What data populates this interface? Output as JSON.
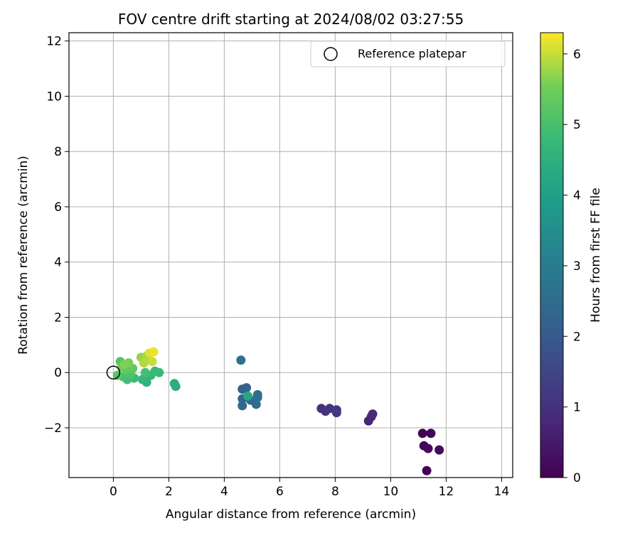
{
  "chart_data": {
    "type": "scatter",
    "title": "FOV centre drift starting at 2024/08/02 03:27:55",
    "xlabel": "Angular distance from reference (arcmin)",
    "ylabel": "Rotation from reference (arcmin)",
    "colorbar_label": "Hours from first FF file",
    "xlim": [
      -1.6,
      14.4
    ],
    "ylim": [
      -3.8,
      12.3
    ],
    "clim": [
      0,
      6.3
    ],
    "x_ticks": [
      0,
      2,
      4,
      6,
      8,
      10,
      12,
      14
    ],
    "y_ticks": [
      -2,
      0,
      2,
      4,
      6,
      8,
      10,
      12
    ],
    "colorbar_ticks": [
      0,
      1,
      2,
      3,
      4,
      5,
      6
    ],
    "grid": true,
    "colormap": "viridis",
    "legend": {
      "placement": "top-right",
      "entries": [
        "Reference platepar"
      ]
    },
    "reference_point": {
      "x": 0,
      "y": 0
    },
    "points": [
      {
        "x": 11.3,
        "y": -3.55,
        "t": 0.0
      },
      {
        "x": 11.15,
        "y": -2.2,
        "t": 0.05
      },
      {
        "x": 11.45,
        "y": -2.2,
        "t": 0.08
      },
      {
        "x": 11.2,
        "y": -2.65,
        "t": 0.12
      },
      {
        "x": 11.35,
        "y": -2.75,
        "t": 0.15
      },
      {
        "x": 11.75,
        "y": -2.8,
        "t": 0.2
      },
      {
        "x": 9.2,
        "y": -1.75,
        "t": 0.7
      },
      {
        "x": 9.3,
        "y": -1.6,
        "t": 0.75
      },
      {
        "x": 9.35,
        "y": -1.5,
        "t": 0.8
      },
      {
        "x": 7.5,
        "y": -1.3,
        "t": 1.0
      },
      {
        "x": 7.65,
        "y": -1.4,
        "t": 1.05
      },
      {
        "x": 7.8,
        "y": -1.3,
        "t": 1.1
      },
      {
        "x": 8.05,
        "y": -1.35,
        "t": 1.15
      },
      {
        "x": 8.05,
        "y": -1.45,
        "t": 1.2
      },
      {
        "x": 4.65,
        "y": -0.6,
        "t": 2.2
      },
      {
        "x": 4.8,
        "y": -0.55,
        "t": 2.25
      },
      {
        "x": 4.65,
        "y": -0.95,
        "t": 2.3
      },
      {
        "x": 4.65,
        "y": -1.2,
        "t": 2.35
      },
      {
        "x": 4.95,
        "y": -1.0,
        "t": 2.4
      },
      {
        "x": 5.15,
        "y": -1.15,
        "t": 2.45
      },
      {
        "x": 5.2,
        "y": -0.8,
        "t": 2.5
      },
      {
        "x": 5.2,
        "y": -0.9,
        "t": 2.55
      },
      {
        "x": 4.6,
        "y": 0.45,
        "t": 2.6
      },
      {
        "x": 4.85,
        "y": -0.85,
        "t": 4.2
      },
      {
        "x": 2.2,
        "y": -0.4,
        "t": 4.4
      },
      {
        "x": 2.25,
        "y": -0.5,
        "t": 4.45
      },
      {
        "x": 1.2,
        "y": -0.35,
        "t": 4.6
      },
      {
        "x": 1.05,
        "y": -0.25,
        "t": 4.65
      },
      {
        "x": 1.35,
        "y": -0.1,
        "t": 4.7
      },
      {
        "x": 1.65,
        "y": 0.0,
        "t": 4.75
      },
      {
        "x": 1.5,
        "y": 0.05,
        "t": 4.8
      },
      {
        "x": 0.75,
        "y": -0.2,
        "t": 4.85
      },
      {
        "x": 0.5,
        "y": -0.25,
        "t": 4.9
      },
      {
        "x": 1.15,
        "y": 0.0,
        "t": 4.95
      },
      {
        "x": 0.35,
        "y": -0.15,
        "t": 5.0
      },
      {
        "x": 0.6,
        "y": -0.05,
        "t": 5.1
      },
      {
        "x": 0.25,
        "y": 0.4,
        "t": 5.15
      },
      {
        "x": 0.15,
        "y": -0.1,
        "t": 5.2
      },
      {
        "x": 0.45,
        "y": 0.1,
        "t": 5.3
      },
      {
        "x": 0.7,
        "y": 0.15,
        "t": 5.35
      },
      {
        "x": 0.3,
        "y": 0.2,
        "t": 5.45
      },
      {
        "x": 0.55,
        "y": 0.35,
        "t": 5.55
      },
      {
        "x": 0.4,
        "y": 0.3,
        "t": 5.6
      },
      {
        "x": 1.0,
        "y": 0.55,
        "t": 5.7
      },
      {
        "x": 1.2,
        "y": 0.6,
        "t": 5.8
      },
      {
        "x": 1.1,
        "y": 0.35,
        "t": 5.9
      },
      {
        "x": 1.4,
        "y": 0.4,
        "t": 6.0
      },
      {
        "x": 1.3,
        "y": 0.7,
        "t": 6.1
      },
      {
        "x": 1.45,
        "y": 0.75,
        "t": 6.2
      }
    ]
  }
}
